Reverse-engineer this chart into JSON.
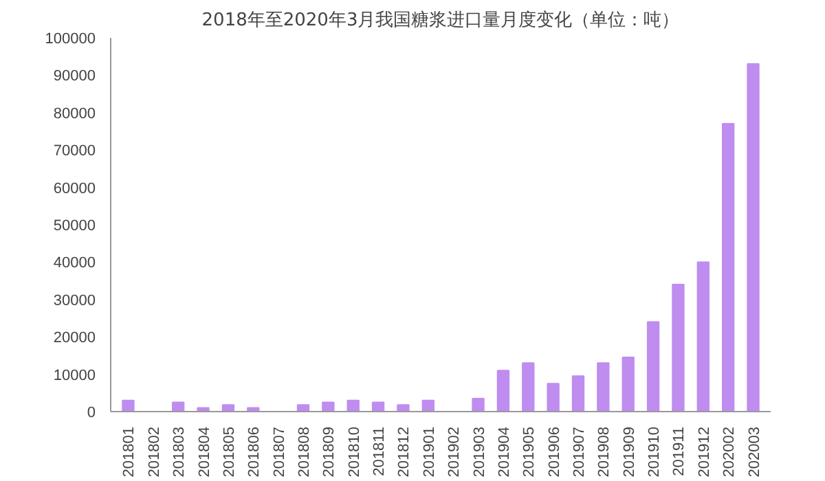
{
  "chart_data": {
    "type": "bar",
    "title": "2018年至2020年3月我国糖浆进口量月度变化（单位：吨）",
    "categories": [
      "201801",
      "201802",
      "201803",
      "201804",
      "201805",
      "201806",
      "201807",
      "201808",
      "201809",
      "201810",
      "201811",
      "201812",
      "201901",
      "201902",
      "201903",
      "201904",
      "201905",
      "201906",
      "201907",
      "201908",
      "201909",
      "201910",
      "201911",
      "201912",
      "202002",
      "202003"
    ],
    "values": [
      3000,
      0,
      2500,
      1000,
      1800,
      1000,
      0,
      1800,
      2500,
      3000,
      2500,
      1800,
      3000,
      0,
      3500,
      11000,
      13000,
      7500,
      9500,
      13000,
      14500,
      24000,
      34000,
      40000,
      77000,
      93000
    ],
    "color": "#bf8cf0",
    "ylim": [
      0,
      100000
    ],
    "yticks": [
      0,
      10000,
      20000,
      30000,
      40000,
      50000,
      60000,
      70000,
      80000,
      90000,
      100000
    ],
    "grid": false
  }
}
